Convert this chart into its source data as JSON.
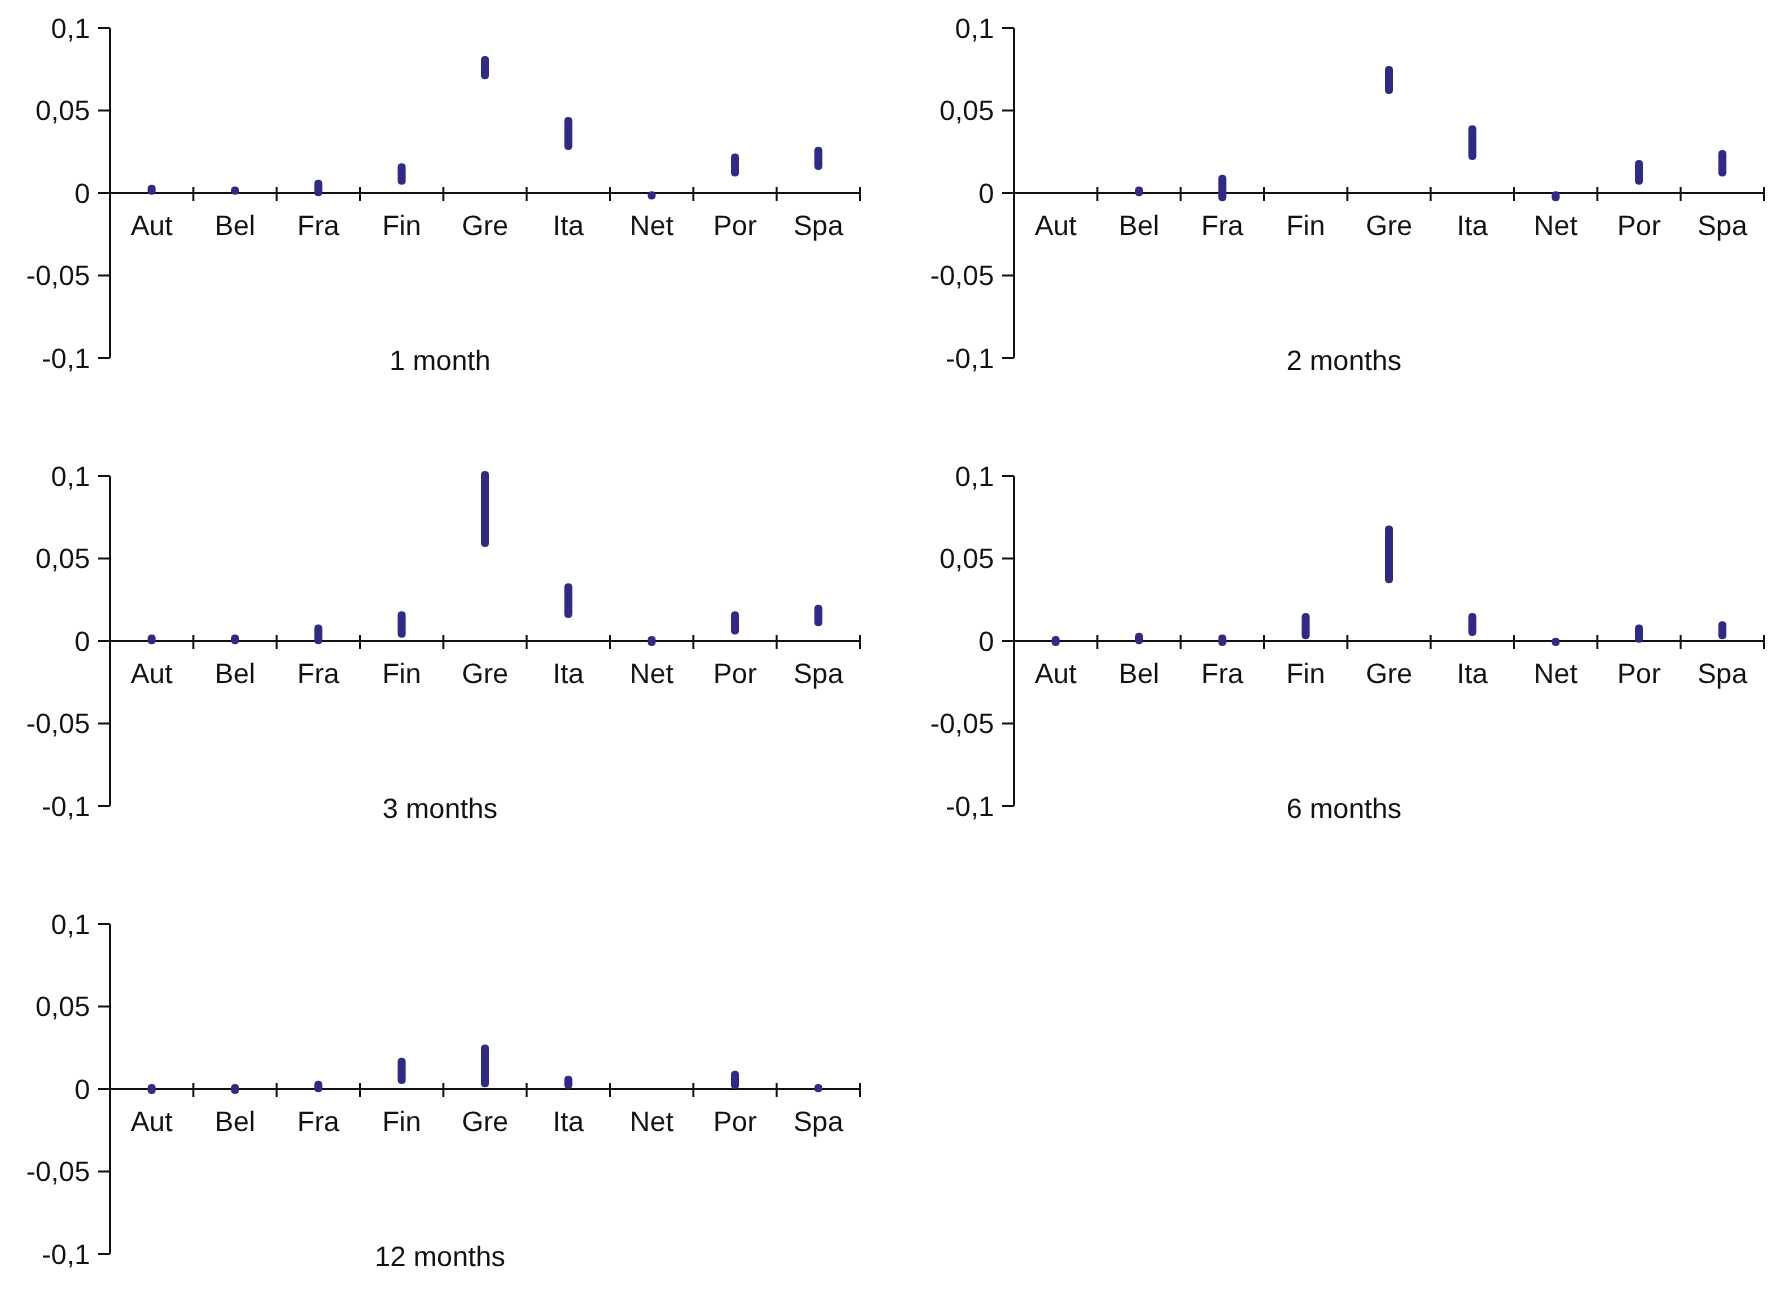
{
  "chart_data": [
    {
      "type": "bar",
      "title": "1 month",
      "categories": [
        "Aut",
        "Bel",
        "Fra",
        "Fin",
        "Gre",
        "Ita",
        "Net",
        "Por",
        "Spa"
      ],
      "base": [
        -0.001,
        -0.001,
        -0.002,
        0.005,
        0.069,
        0.026,
        -0.004,
        0.01,
        0.014
      ],
      "values": [
        0.006,
        0.005,
        0.01,
        0.013,
        0.014,
        0.02,
        0.005,
        0.014,
        0.014
      ],
      "color": "#2e2a85",
      "ylim": [
        -0.1,
        0.1
      ],
      "yticks": [
        {
          "value": -0.1,
          "label": "-0,1"
        },
        {
          "value": -0.05,
          "label": "-0,05"
        },
        {
          "value": 0,
          "label": "0"
        },
        {
          "value": 0.05,
          "label": "0,05"
        },
        {
          "value": 0.1,
          "label": "0,1"
        }
      ]
    },
    {
      "type": "bar",
      "title": "2 months",
      "categories": [
        "Aut",
        "Bel",
        "Fra",
        "Fin",
        "Gre",
        "Ita",
        "Net",
        "Por",
        "Spa"
      ],
      "base": [
        null,
        -0.002,
        -0.005,
        null,
        0.06,
        0.02,
        -0.005,
        0.005,
        0.01
      ],
      "values": [
        null,
        0.006,
        0.016,
        null,
        0.017,
        0.021,
        0.006,
        0.015,
        0.016
      ],
      "color": "#2e2a85",
      "ylim": [
        -0.1,
        0.1
      ],
      "yticks": [
        {
          "value": -0.1,
          "label": "-0,1"
        },
        {
          "value": -0.05,
          "label": "-0,05"
        },
        {
          "value": 0,
          "label": "0"
        },
        {
          "value": 0.05,
          "label": "0,05"
        },
        {
          "value": 0.1,
          "label": "0,1"
        }
      ]
    },
    {
      "type": "bar",
      "title": "3 months",
      "categories": [
        "Aut",
        "Bel",
        "Fra",
        "Fin",
        "Gre",
        "Ita",
        "Net",
        "Por",
        "Spa"
      ],
      "base": [
        -0.002,
        -0.002,
        -0.002,
        0.002,
        0.057,
        0.014,
        -0.003,
        0.004,
        0.009
      ],
      "values": [
        0.006,
        0.006,
        0.012,
        0.016,
        0.046,
        0.021,
        0.006,
        0.014,
        0.013
      ],
      "color": "#2e2a85",
      "ylim": [
        -0.1,
        0.1
      ],
      "yticks": [
        {
          "value": -0.1,
          "label": "-0,1"
        },
        {
          "value": -0.05,
          "label": "-0,05"
        },
        {
          "value": 0,
          "label": "0"
        },
        {
          "value": 0.05,
          "label": "0,05"
        },
        {
          "value": 0.1,
          "label": "0,1"
        }
      ]
    },
    {
      "type": "bar",
      "title": "6 months",
      "categories": [
        "Aut",
        "Bel",
        "Fra",
        "Fin",
        "Gre",
        "Ita",
        "Net",
        "Por",
        "Spa"
      ],
      "base": [
        -0.003,
        -0.002,
        -0.003,
        0.001,
        0.035,
        0.003,
        -0.003,
        -0.001,
        0.001
      ],
      "values": [
        0.006,
        0.007,
        0.007,
        0.016,
        0.035,
        0.014,
        0.005,
        0.011,
        0.011
      ],
      "color": "#2e2a85",
      "ylim": [
        -0.1,
        0.1
      ],
      "yticks": [
        {
          "value": -0.1,
          "label": "-0,1"
        },
        {
          "value": -0.05,
          "label": "-0,05"
        },
        {
          "value": 0,
          "label": "0"
        },
        {
          "value": 0.05,
          "label": "0,05"
        },
        {
          "value": 0.1,
          "label": "0,1"
        }
      ]
    },
    {
      "type": "bar",
      "title": "12 months",
      "categories": [
        "Aut",
        "Bel",
        "Fra",
        "Fin",
        "Gre",
        "Ita",
        "Net",
        "Por",
        "Spa"
      ],
      "base": [
        -0.003,
        -0.003,
        -0.002,
        0.003,
        0.001,
        0.0,
        null,
        0.0,
        -0.002
      ],
      "values": [
        0.006,
        0.006,
        0.007,
        0.016,
        0.026,
        0.008,
        null,
        0.011,
        0.005
      ],
      "color": "#2e2a85",
      "ylim": [
        -0.1,
        0.1
      ],
      "yticks": [
        {
          "value": -0.1,
          "label": "-0,1"
        },
        {
          "value": -0.05,
          "label": "-0,05"
        },
        {
          "value": 0,
          "label": "0"
        },
        {
          "value": 0.05,
          "label": "0,05"
        },
        {
          "value": 0.1,
          "label": "0,1"
        }
      ]
    }
  ]
}
